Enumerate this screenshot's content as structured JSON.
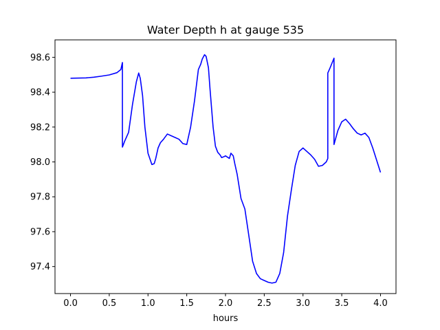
{
  "chart_data": {
    "type": "line",
    "title": "Water Depth h at gauge 535",
    "xlabel": "hours",
    "ylabel": "",
    "xlim": [
      -0.2,
      4.2
    ],
    "ylim": [
      97.245,
      98.7
    ],
    "xticks": [
      0.0,
      0.5,
      1.0,
      1.5,
      2.0,
      2.5,
      3.0,
      3.5,
      4.0
    ],
    "xtick_labels": [
      "0.0",
      "0.5",
      "1.0",
      "1.5",
      "2.0",
      "2.5",
      "3.0",
      "3.5",
      "4.0"
    ],
    "yticks": [
      97.4,
      97.6,
      97.8,
      98.0,
      98.2,
      98.4,
      98.6
    ],
    "ytick_labels": [
      "97.4",
      "97.6",
      "97.8",
      "98.0",
      "98.2",
      "98.4",
      "98.6"
    ],
    "grid": false,
    "color": "#0000ff",
    "series": [
      {
        "x": [
          0.0,
          0.2,
          0.3,
          0.4,
          0.5,
          0.6,
          0.65,
          0.67,
          0.67,
          0.7,
          0.75,
          0.8,
          0.85,
          0.88,
          0.9,
          0.93,
          0.96,
          1.0,
          1.05,
          1.08,
          1.1,
          1.13,
          1.16,
          1.2,
          1.25,
          1.3,
          1.35,
          1.4,
          1.45,
          1.5,
          1.55,
          1.6,
          1.65,
          1.68,
          1.7,
          1.73,
          1.75,
          1.78,
          1.8,
          1.84,
          1.87,
          1.9,
          1.93,
          1.95,
          1.98,
          2.0,
          2.05,
          2.07,
          2.1,
          2.12,
          2.15,
          2.2,
          2.25,
          2.3,
          2.35,
          2.4,
          2.45,
          2.5,
          2.55,
          2.6,
          2.65,
          2.7,
          2.75,
          2.8,
          2.85,
          2.9,
          2.95,
          3.0,
          3.05,
          3.1,
          3.15,
          3.2,
          3.25,
          3.3,
          3.32,
          3.32,
          3.35,
          3.4,
          3.4,
          3.45,
          3.5,
          3.55,
          3.6,
          3.65,
          3.7,
          3.75,
          3.8,
          3.85,
          3.9,
          3.95,
          4.0
        ],
        "values": [
          98.48,
          98.482,
          98.486,
          98.492,
          98.499,
          98.512,
          98.53,
          98.57,
          98.085,
          98.12,
          98.17,
          98.33,
          98.46,
          98.51,
          98.48,
          98.38,
          98.2,
          98.05,
          97.985,
          97.99,
          98.02,
          98.08,
          98.11,
          98.13,
          98.16,
          98.15,
          98.14,
          98.13,
          98.105,
          98.1,
          98.2,
          98.35,
          98.53,
          98.56,
          98.59,
          98.615,
          98.605,
          98.54,
          98.42,
          98.2,
          98.09,
          98.055,
          98.04,
          98.025,
          98.03,
          98.035,
          98.02,
          98.05,
          98.035,
          97.99,
          97.93,
          97.79,
          97.73,
          97.58,
          97.43,
          97.36,
          97.33,
          97.32,
          97.31,
          97.305,
          97.31,
          97.36,
          97.48,
          97.69,
          97.84,
          97.98,
          98.06,
          98.08,
          98.06,
          98.04,
          98.015,
          97.975,
          97.98,
          98.0,
          98.02,
          98.51,
          98.54,
          98.595,
          98.1,
          98.18,
          98.23,
          98.245,
          98.22,
          98.19,
          98.165,
          98.155,
          98.165,
          98.14,
          98.08,
          98.01,
          97.94
        ]
      }
    ]
  }
}
